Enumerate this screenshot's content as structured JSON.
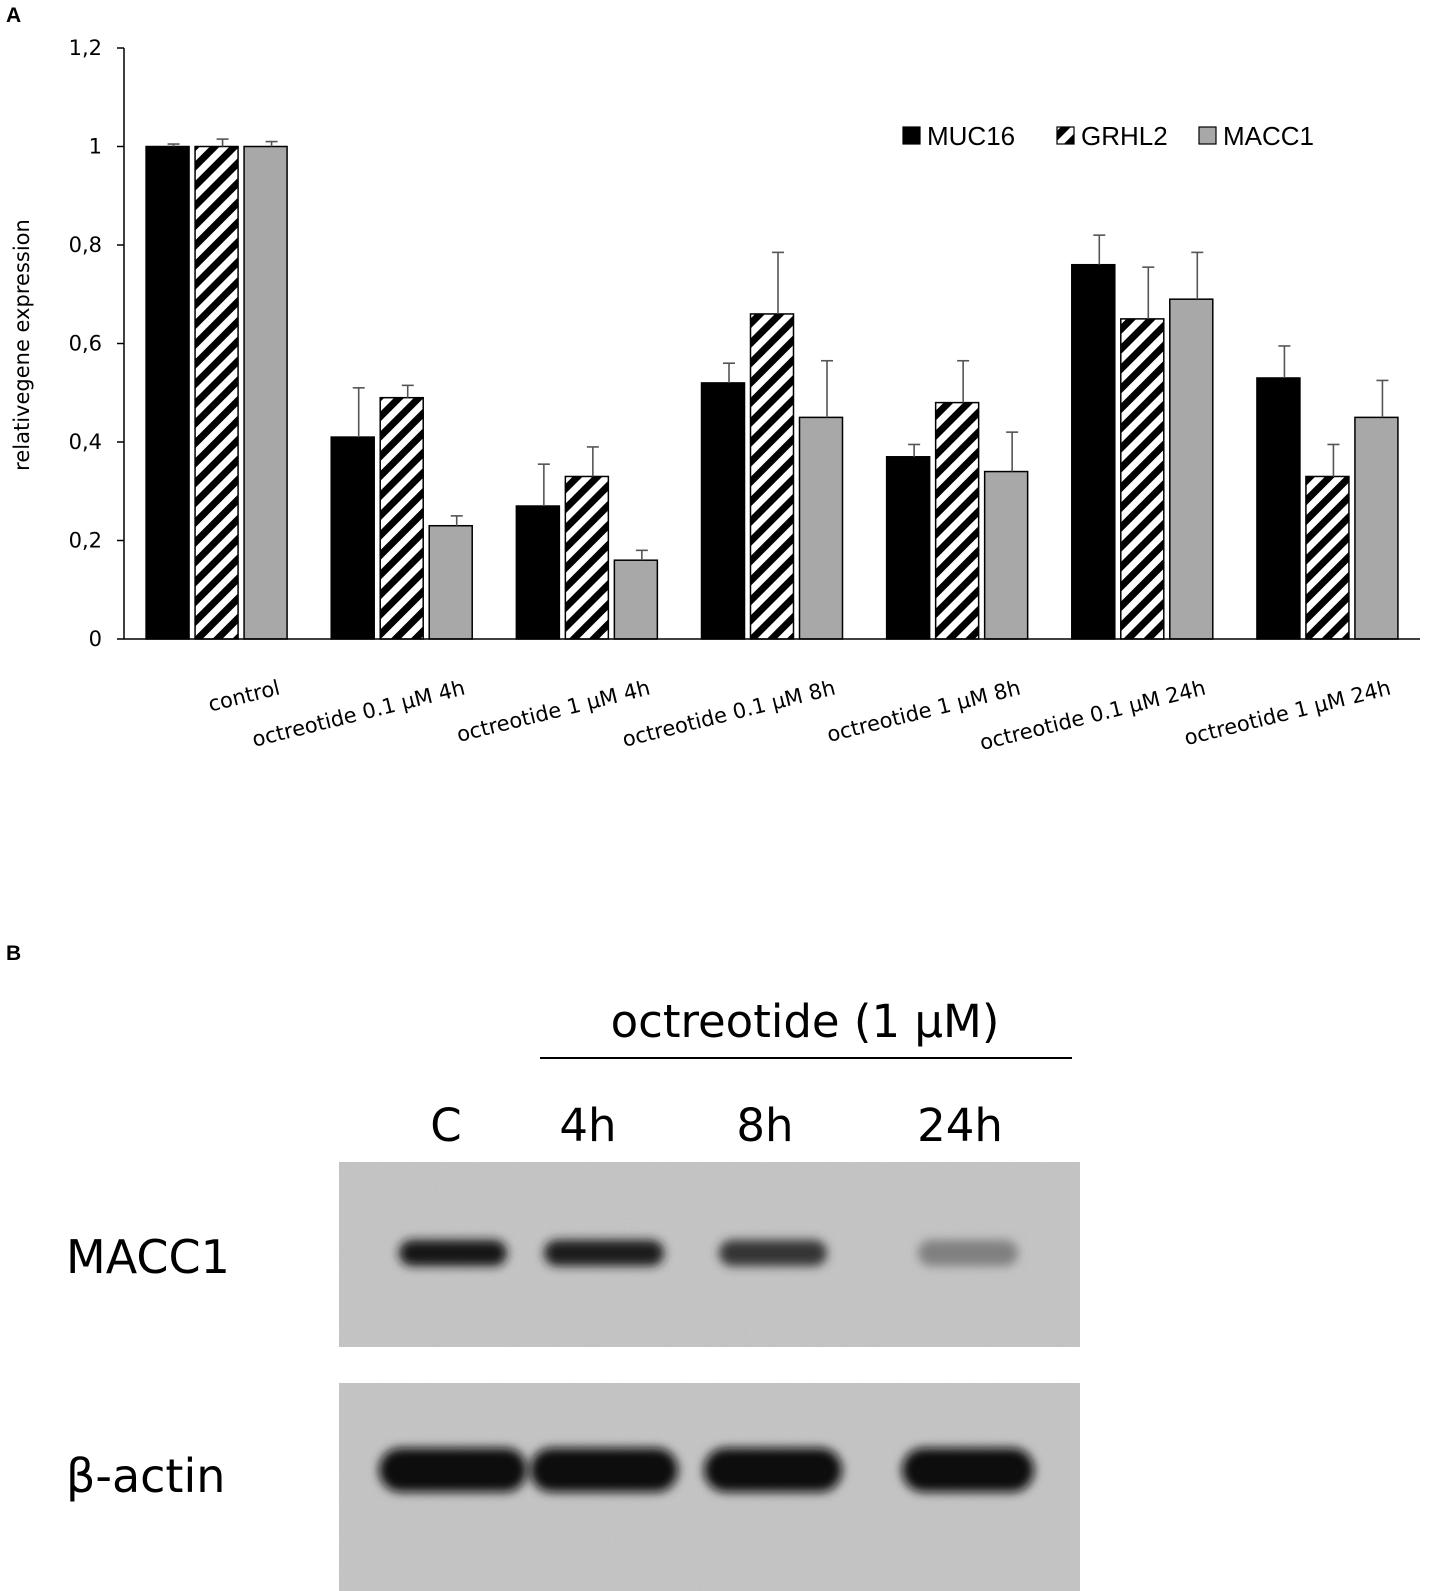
{
  "panel_a_letter": "A",
  "panel_b_letter": "B",
  "chart_data": {
    "type": "bar",
    "title": "",
    "xlabel": "",
    "ylabel": "relativegene expression",
    "ylim": [
      0,
      1.2
    ],
    "yticks": [
      0,
      0.2,
      0.4,
      0.6,
      0.8,
      1,
      1.2
    ],
    "ytick_labels": [
      "0",
      "0,2",
      "0,4",
      "0,6",
      "0,8",
      "1",
      "1,2"
    ],
    "grid": false,
    "legend_position": "top-right",
    "categories": [
      "control",
      "octreotide 0.1 µM 4h",
      "octreotide 1 µM 4h",
      "octreotide 0.1 µM 8h",
      "octreotide 1 µM 8h",
      "octreotide 0.1 µM 24h",
      "octreotide 1 µM 24h"
    ],
    "series": [
      {
        "name": "MUC16",
        "style": "solid-black",
        "color": "#000000",
        "values": [
          1.0,
          0.41,
          0.27,
          0.52,
          0.37,
          0.76,
          0.53
        ],
        "errors": [
          0.005,
          0.1,
          0.085,
          0.04,
          0.025,
          0.06,
          0.065
        ]
      },
      {
        "name": "GRHL2",
        "style": "hatched",
        "color": "#000000",
        "values": [
          1.0,
          0.49,
          0.33,
          0.66,
          0.48,
          0.65,
          0.33
        ],
        "errors": [
          0.015,
          0.025,
          0.06,
          0.125,
          0.085,
          0.105,
          0.065
        ]
      },
      {
        "name": "MACC1",
        "style": "solid-gray",
        "color": "#a8a8a8",
        "values": [
          1.0,
          0.23,
          0.16,
          0.45,
          0.34,
          0.69,
          0.45
        ],
        "errors": [
          0.01,
          0.02,
          0.02,
          0.115,
          0.08,
          0.095,
          0.075
        ]
      }
    ]
  },
  "western_blot": {
    "title": "octreotide (1 µM)",
    "lanes": [
      "C",
      "4h",
      "8h",
      "24h"
    ],
    "rows": [
      {
        "label": "MACC1",
        "band_intensities": [
          0.92,
          0.9,
          0.78,
          0.38
        ]
      },
      {
        "label": "β-actin",
        "band_intensities": [
          1.0,
          1.0,
          1.0,
          1.0
        ]
      }
    ]
  }
}
